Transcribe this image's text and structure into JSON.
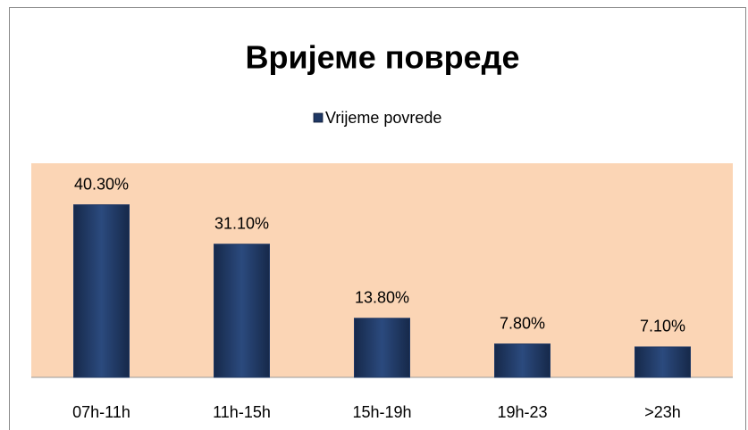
{
  "chart_data": {
    "type": "bar",
    "title": "Вријеме повреде",
    "legend": "Vrijeme povrede",
    "categories": [
      "07h-11h",
      "11h-15h",
      "15h-19h",
      "19h-23",
      ">23h"
    ],
    "series": [
      {
        "name": "Vrijeme povrede",
        "color": "#1f3864",
        "values": [
          40.3,
          31.1,
          13.8,
          7.8,
          7.1
        ],
        "value_labels": [
          "40.30%",
          "31.10%",
          "13.80%",
          "7.80%",
          "7.10%"
        ]
      }
    ],
    "ylim": [
      0,
      50
    ],
    "plot_background": "#fbd5b5"
  }
}
